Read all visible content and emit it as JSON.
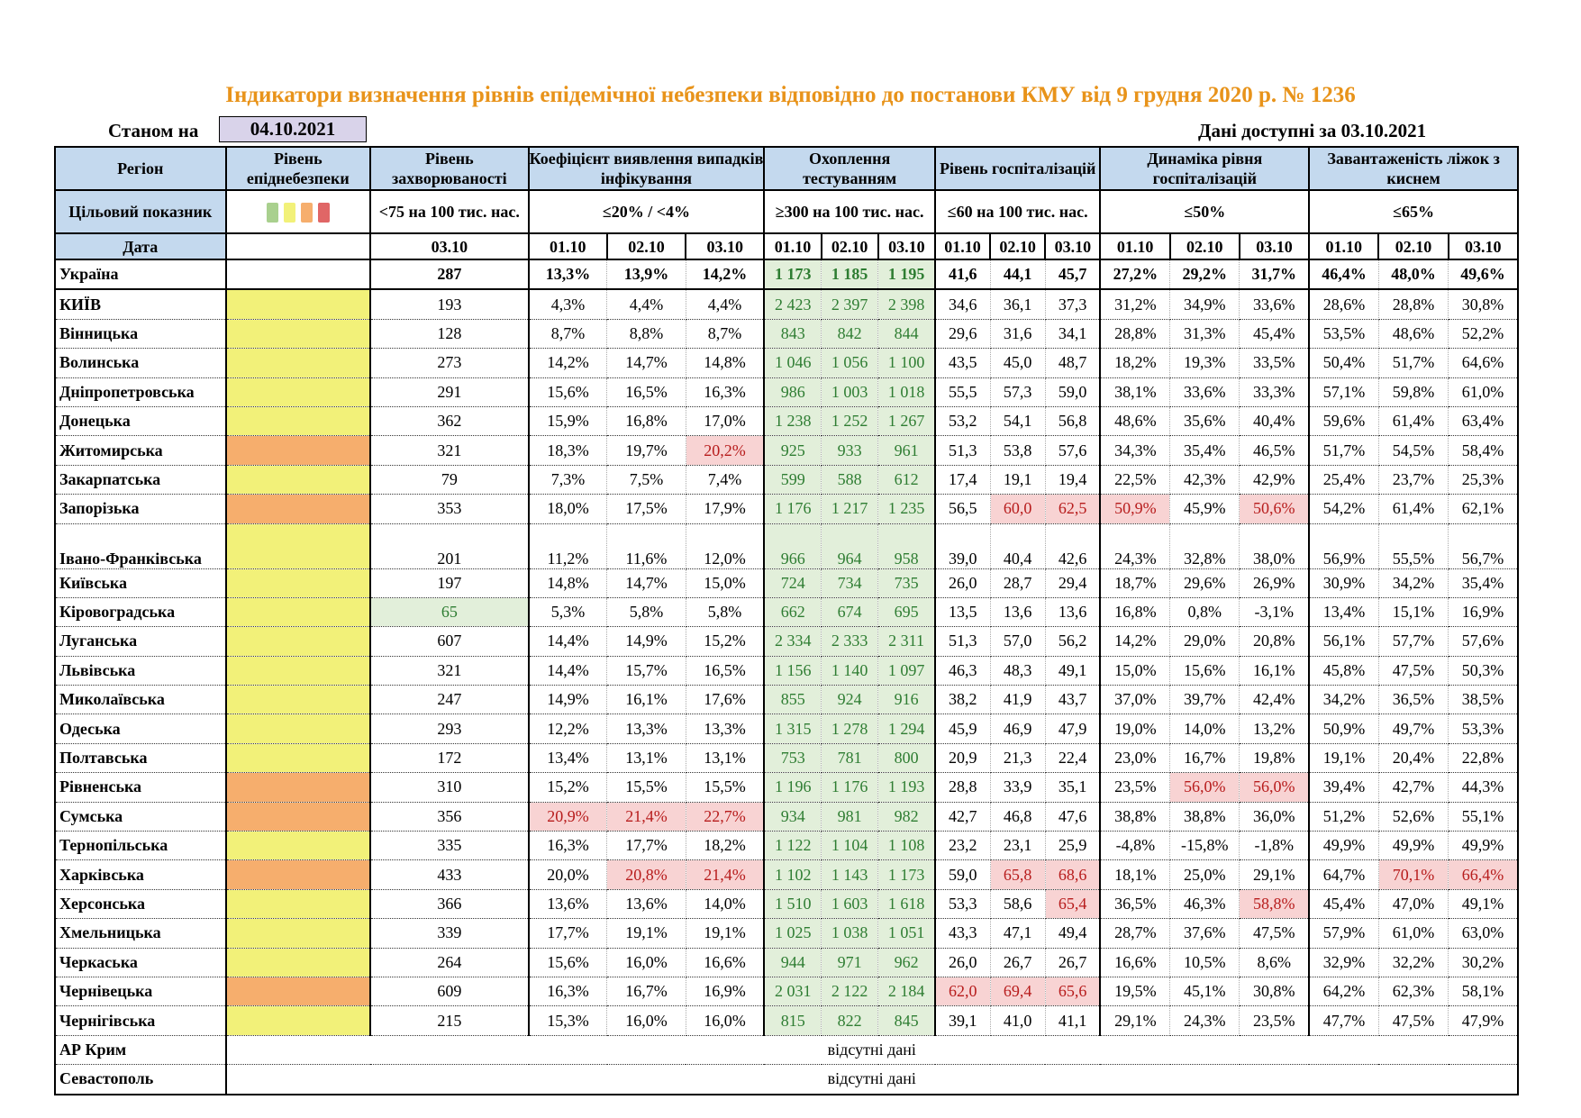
{
  "title": "Індикатори визначення рівнів епідемічної небезпеки відповідно до постанови КМУ від 9 грудня 2020 р. № 1236",
  "stanom_label": "Станом на",
  "stanom_date": "04.10.2021",
  "avail_label": "Дані доступні за",
  "avail_date": "03.10.2021",
  "headers": {
    "region": "Регіон",
    "level": "Рівень епіднебезпеки",
    "incidence": "Рівень захворюваності",
    "detection": "Коефіцієнт виявлення випадків інфікування",
    "testing": "Охоплення тестуванням",
    "hosp": "Рівень госпіталізацій",
    "dyn": "Динаміка рівня госпіталізацій",
    "beds": "Завантаженість ліжок з киснем"
  },
  "target": {
    "label": "Цільовий показник",
    "incidence": "<75 на 100 тис. нас.",
    "detection": "≤20% / <4%",
    "testing": "≥300 на 100 тис. нас.",
    "hosp": "≤60 на 100 тис. нас.",
    "dyn": "≤50%",
    "beds": "≤65%"
  },
  "date_row": {
    "label": "Дата",
    "incidence": "03.10",
    "d1": "01.10",
    "d2": "02.10",
    "d3": "03.10"
  },
  "level_colors": {
    "green": "#a9d08e",
    "yellow": "#f2f179",
    "orange": "#f6ae6d",
    "red": "#e06666"
  },
  "no_data_text": "відсутні дані",
  "no_data_regions": [
    "АР Крим",
    "Севастополь"
  ],
  "rows": [
    {
      "r": "Україна",
      "lvl": "",
      "v": [
        "287",
        "13,3%",
        "13,9%",
        "14,2%",
        "1 173",
        "1 185",
        "1 195",
        "41,6",
        "44,1",
        "45,7",
        "27,2%",
        "29,2%",
        "31,7%",
        "46,4%",
        "48,0%",
        "49,6%"
      ],
      "red": []
    },
    {
      "r": "КИЇВ",
      "lvl": "yellow",
      "v": [
        "193",
        "4,3%",
        "4,4%",
        "4,4%",
        "2 423",
        "2 397",
        "2 398",
        "34,6",
        "36,1",
        "37,3",
        "31,2%",
        "34,9%",
        "33,6%",
        "28,6%",
        "28,8%",
        "30,8%"
      ],
      "red": []
    },
    {
      "r": "Вінницька",
      "lvl": "yellow",
      "v": [
        "128",
        "8,7%",
        "8,8%",
        "8,7%",
        "843",
        "842",
        "844",
        "29,6",
        "31,6",
        "34,1",
        "28,8%",
        "31,3%",
        "45,4%",
        "53,5%",
        "48,6%",
        "52,2%"
      ],
      "red": []
    },
    {
      "r": "Волинська",
      "lvl": "yellow",
      "v": [
        "273",
        "14,2%",
        "14,7%",
        "14,8%",
        "1 046",
        "1 056",
        "1 100",
        "43,5",
        "45,0",
        "48,7",
        "18,2%",
        "19,3%",
        "33,5%",
        "50,4%",
        "51,7%",
        "64,6%"
      ],
      "red": []
    },
    {
      "r": "Дніпропетровська",
      "lvl": "yellow",
      "v": [
        "291",
        "15,6%",
        "16,5%",
        "16,3%",
        "986",
        "1 003",
        "1 018",
        "55,5",
        "57,3",
        "59,0",
        "38,1%",
        "33,6%",
        "33,3%",
        "57,1%",
        "59,8%",
        "61,0%"
      ],
      "red": []
    },
    {
      "r": "Донецька",
      "lvl": "yellow",
      "v": [
        "362",
        "15,9%",
        "16,8%",
        "17,0%",
        "1 238",
        "1 252",
        "1 267",
        "53,2",
        "54,1",
        "56,8",
        "48,6%",
        "35,6%",
        "40,4%",
        "59,6%",
        "61,4%",
        "63,4%"
      ],
      "red": []
    },
    {
      "r": "Житомирська",
      "lvl": "orange",
      "v": [
        "321",
        "18,3%",
        "19,7%",
        "20,2%",
        "925",
        "933",
        "961",
        "51,3",
        "53,8",
        "57,6",
        "34,3%",
        "35,4%",
        "46,5%",
        "51,7%",
        "54,5%",
        "58,4%"
      ],
      "red": [
        3
      ]
    },
    {
      "r": "Закарпатська",
      "lvl": "yellow",
      "v": [
        "79",
        "7,3%",
        "7,5%",
        "7,4%",
        "599",
        "588",
        "612",
        "17,4",
        "19,1",
        "19,4",
        "22,5%",
        "42,3%",
        "42,9%",
        "25,4%",
        "23,7%",
        "25,3%"
      ],
      "red": []
    },
    {
      "r": "Запорізька",
      "lvl": "orange",
      "v": [
        "353",
        "18,0%",
        "17,5%",
        "17,9%",
        "1 176",
        "1 217",
        "1 235",
        "56,5",
        "60,0",
        "62,5",
        "50,9%",
        "45,9%",
        "50,6%",
        "54,2%",
        "61,4%",
        "62,1%"
      ],
      "red": [
        8,
        9,
        10,
        12
      ]
    },
    {
      "r": "Івано-Франківська",
      "lvl": "yellow",
      "v": [
        "201",
        "11,2%",
        "11,6%",
        "12,0%",
        "966",
        "964",
        "958",
        "39,0",
        "40,4",
        "42,6",
        "24,3%",
        "32,8%",
        "38,0%",
        "56,9%",
        "55,5%",
        "56,7%"
      ],
      "red": [],
      "tall": true
    },
    {
      "r": "Київська",
      "lvl": "yellow",
      "v": [
        "197",
        "14,8%",
        "14,7%",
        "15,0%",
        "724",
        "734",
        "735",
        "26,0",
        "28,7",
        "29,4",
        "18,7%",
        "29,6%",
        "26,9%",
        "30,9%",
        "34,2%",
        "35,4%"
      ],
      "red": []
    },
    {
      "r": "Кіровоградська",
      "lvl": "yellow",
      "v": [
        "65",
        "5,3%",
        "5,8%",
        "5,8%",
        "662",
        "674",
        "695",
        "13,5",
        "13,6",
        "13,6",
        "16,8%",
        "0,8%",
        "-3,1%",
        "13,4%",
        "15,1%",
        "16,9%"
      ],
      "red": [],
      "inc_green": true
    },
    {
      "r": "Луганська",
      "lvl": "yellow",
      "v": [
        "607",
        "14,4%",
        "14,9%",
        "15,2%",
        "2 334",
        "2 333",
        "2 311",
        "51,3",
        "57,0",
        "56,2",
        "14,2%",
        "29,0%",
        "20,8%",
        "56,1%",
        "57,7%",
        "57,6%"
      ],
      "red": []
    },
    {
      "r": "Львівська",
      "lvl": "yellow",
      "v": [
        "321",
        "14,4%",
        "15,7%",
        "16,5%",
        "1 156",
        "1 140",
        "1 097",
        "46,3",
        "48,3",
        "49,1",
        "15,0%",
        "15,6%",
        "16,1%",
        "45,8%",
        "47,5%",
        "50,3%"
      ],
      "red": []
    },
    {
      "r": "Миколаївська",
      "lvl": "yellow",
      "v": [
        "247",
        "14,9%",
        "16,1%",
        "17,6%",
        "855",
        "924",
        "916",
        "38,2",
        "41,9",
        "43,7",
        "37,0%",
        "39,7%",
        "42,4%",
        "34,2%",
        "36,5%",
        "38,5%"
      ],
      "red": []
    },
    {
      "r": "Одеська",
      "lvl": "yellow",
      "v": [
        "293",
        "12,2%",
        "13,3%",
        "13,3%",
        "1 315",
        "1 278",
        "1 294",
        "45,9",
        "46,9",
        "47,9",
        "19,0%",
        "14,0%",
        "13,2%",
        "50,9%",
        "49,7%",
        "53,3%"
      ],
      "red": []
    },
    {
      "r": "Полтавська",
      "lvl": "yellow",
      "v": [
        "172",
        "13,4%",
        "13,1%",
        "13,1%",
        "753",
        "781",
        "800",
        "20,9",
        "21,3",
        "22,4",
        "23,0%",
        "16,7%",
        "19,8%",
        "19,1%",
        "20,4%",
        "22,8%"
      ],
      "red": []
    },
    {
      "r": "Рівненська",
      "lvl": "orange",
      "v": [
        "310",
        "15,2%",
        "15,5%",
        "15,5%",
        "1 196",
        "1 176",
        "1 193",
        "28,8",
        "33,9",
        "35,1",
        "23,5%",
        "56,0%",
        "56,0%",
        "39,4%",
        "42,7%",
        "44,3%"
      ],
      "red": [
        11,
        12
      ]
    },
    {
      "r": "Сумська",
      "lvl": "orange",
      "v": [
        "356",
        "20,9%",
        "21,4%",
        "22,7%",
        "934",
        "981",
        "982",
        "42,7",
        "46,8",
        "47,6",
        "38,8%",
        "38,8%",
        "36,0%",
        "51,2%",
        "52,6%",
        "55,1%"
      ],
      "red": [
        1,
        2,
        3
      ]
    },
    {
      "r": "Тернопільська",
      "lvl": "yellow",
      "v": [
        "335",
        "16,3%",
        "17,7%",
        "18,2%",
        "1 122",
        "1 104",
        "1 108",
        "23,2",
        "23,1",
        "25,9",
        "-4,8%",
        "-15,8%",
        "-1,8%",
        "49,9%",
        "49,9%",
        "49,9%"
      ],
      "red": []
    },
    {
      "r": "Харківська",
      "lvl": "orange",
      "v": [
        "433",
        "20,0%",
        "20,8%",
        "21,4%",
        "1 102",
        "1 143",
        "1 173",
        "59,0",
        "65,8",
        "68,6",
        "18,1%",
        "25,0%",
        "29,1%",
        "64,7%",
        "70,1%",
        "66,4%"
      ],
      "red": [
        2,
        3,
        8,
        9,
        14,
        15
      ]
    },
    {
      "r": "Херсонська",
      "lvl": "yellow",
      "v": [
        "366",
        "13,6%",
        "13,6%",
        "14,0%",
        "1 510",
        "1 603",
        "1 618",
        "53,3",
        "58,6",
        "65,4",
        "36,5%",
        "46,3%",
        "58,8%",
        "45,4%",
        "47,0%",
        "49,1%"
      ],
      "red": [
        9,
        12
      ]
    },
    {
      "r": "Хмельницька",
      "lvl": "yellow",
      "v": [
        "339",
        "17,7%",
        "19,1%",
        "19,1%",
        "1 025",
        "1 038",
        "1 051",
        "43,3",
        "47,1",
        "49,4",
        "28,7%",
        "37,6%",
        "47,5%",
        "57,9%",
        "61,0%",
        "63,0%"
      ],
      "red": []
    },
    {
      "r": "Черкаська",
      "lvl": "yellow",
      "v": [
        "264",
        "15,6%",
        "16,0%",
        "16,6%",
        "944",
        "971",
        "962",
        "26,0",
        "26,7",
        "26,7",
        "16,6%",
        "10,5%",
        "8,6%",
        "32,9%",
        "32,2%",
        "30,2%"
      ],
      "red": []
    },
    {
      "r": "Чернівецька",
      "lvl": "orange",
      "v": [
        "609",
        "16,3%",
        "16,7%",
        "16,9%",
        "2 031",
        "2 122",
        "2 184",
        "62,0",
        "69,4",
        "65,6",
        "19,5%",
        "45,1%",
        "30,8%",
        "64,2%",
        "62,3%",
        "58,1%"
      ],
      "red": [
        7,
        8,
        9
      ]
    },
    {
      "r": "Чернігівська",
      "lvl": "yellow",
      "v": [
        "215",
        "15,3%",
        "16,0%",
        "16,0%",
        "815",
        "822",
        "845",
        "39,1",
        "41,0",
        "41,1",
        "29,1%",
        "24,3%",
        "23,5%",
        "47,7%",
        "47,5%",
        "47,9%"
      ],
      "red": []
    }
  ]
}
